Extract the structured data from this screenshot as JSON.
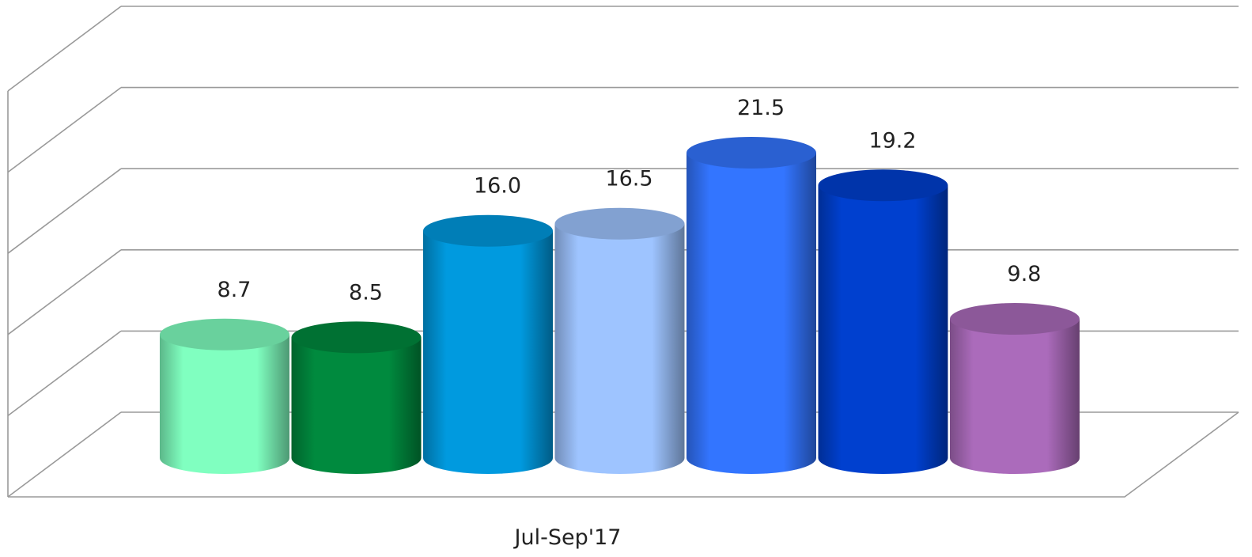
{
  "chart_data": {
    "type": "bar",
    "style": "3d-cylinder",
    "categories": [
      "Jul-Sep'17"
    ],
    "series": [
      {
        "values": [
          8.7
        ],
        "color": "#80FFC0"
      },
      {
        "values": [
          8.5
        ],
        "color": "#008A3E"
      },
      {
        "values": [
          16.0
        ],
        "color": "#009ADF"
      },
      {
        "values": [
          16.5
        ],
        "color": "#9EC4FF"
      },
      {
        "values": [
          21.5
        ],
        "color": "#3375FF"
      },
      {
        "values": [
          19.2
        ],
        "color": "#0040CF"
      },
      {
        "values": [
          9.8
        ],
        "color": "#AB6BBB"
      }
    ],
    "data_labels": [
      "8.7",
      "8.5",
      "16.0",
      "16.5",
      "21.5",
      "19.2",
      "9.8"
    ],
    "x_tick_label": "Jul-Sep'17",
    "ylim": [
      0,
      30
    ],
    "grid": true,
    "legend": "none"
  }
}
